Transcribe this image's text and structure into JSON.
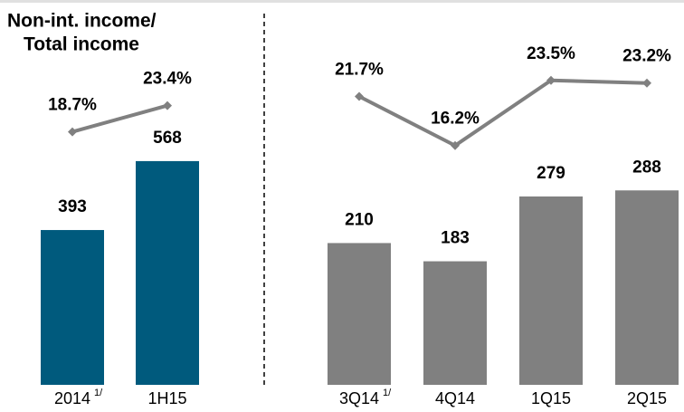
{
  "chart_data": [
    {
      "type": "bar",
      "title": [
        "Non-int. income/",
        "Total income"
      ],
      "categories": [
        "2014",
        "1H15"
      ],
      "footnotes": [
        "1/",
        null
      ],
      "values": [
        393,
        568
      ],
      "color": "#005a7d",
      "ylim": [
        0,
        977
      ],
      "series": [
        {
          "type": "line",
          "color": "#808080",
          "values": [
            18.7,
            23.4
          ],
          "value_labels": [
            "18.7%",
            "23.4%"
          ],
          "axis": "y2"
        }
      ],
      "y2lim": [
        -26.6,
        42.3
      ]
    },
    {
      "type": "bar",
      "categories": [
        "3Q14",
        "4Q14",
        "1Q15",
        "2Q15"
      ],
      "footnotes": [
        "1/",
        null,
        null,
        null
      ],
      "values": [
        210,
        183,
        279,
        288
      ],
      "color": "#808080",
      "ylim": [
        0,
        570
      ],
      "series": [
        {
          "type": "line",
          "color": "#808080",
          "values": [
            21.7,
            16.2,
            23.5,
            23.2
          ],
          "value_labels": [
            "21.7%",
            "16.2%",
            "23.5%",
            "23.2%"
          ],
          "axis": "y2"
        }
      ],
      "y2lim": [
        -10.6,
        32.5
      ]
    }
  ]
}
